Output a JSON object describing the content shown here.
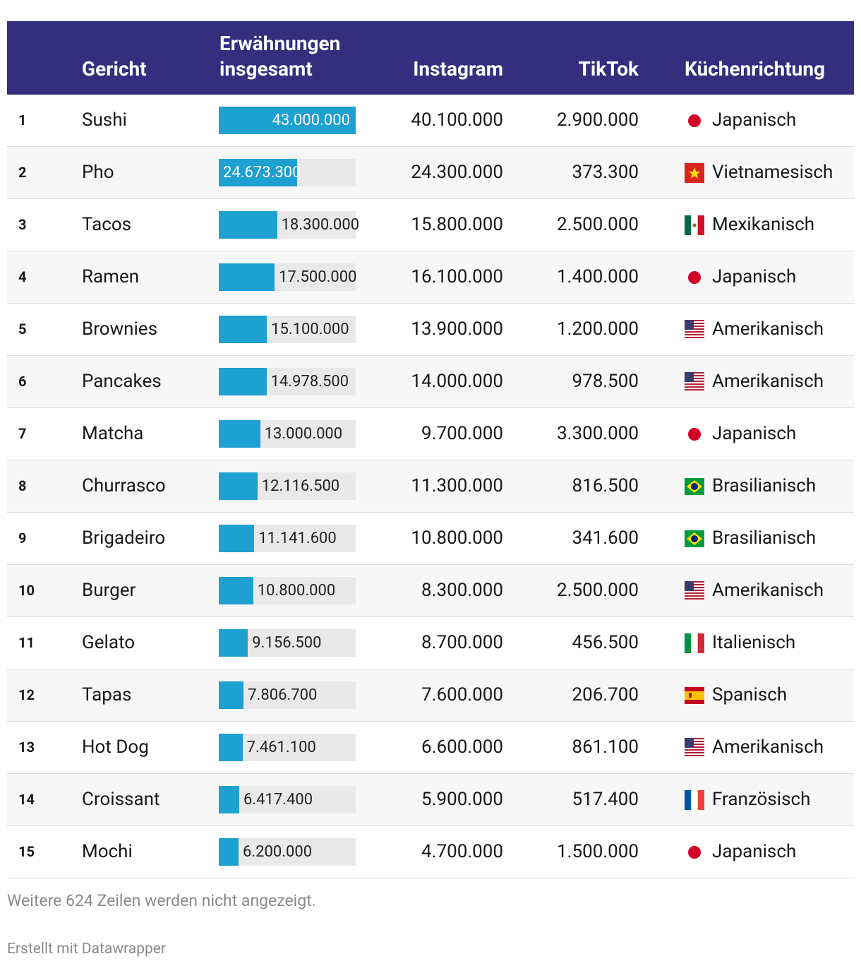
{
  "table": {
    "header": {
      "dish": "Gericht",
      "total": "Erwähnungen insgesamt",
      "instagram": "Instagram",
      "tiktok": "TikTok",
      "cuisine": "Küchenrichtung"
    },
    "rows": [
      {
        "rank": 1,
        "dish": "Sushi",
        "total": {
          "value": 43000000,
          "label": "43.000.000"
        },
        "instagram": "40.100.000",
        "tiktok": "2.900.000",
        "cuisine": "Japanisch"
      },
      {
        "rank": 2,
        "dish": "Pho",
        "total": {
          "value": 24673300,
          "label": "24.673.300"
        },
        "instagram": "24.300.000",
        "tiktok": "373.300",
        "cuisine": "Vietnamesisch"
      },
      {
        "rank": 3,
        "dish": "Tacos",
        "total": {
          "value": 18300000,
          "label": "18.300.000"
        },
        "instagram": "15.800.000",
        "tiktok": "2.500.000",
        "cuisine": "Mexikanisch"
      },
      {
        "rank": 4,
        "dish": "Ramen",
        "total": {
          "value": 17500000,
          "label": "17.500.000"
        },
        "instagram": "16.100.000",
        "tiktok": "1.400.000",
        "cuisine": "Japanisch"
      },
      {
        "rank": 5,
        "dish": "Brownies",
        "total": {
          "value": 15100000,
          "label": "15.100.000"
        },
        "instagram": "13.900.000",
        "tiktok": "1.200.000",
        "cuisine": "Amerikanisch"
      },
      {
        "rank": 6,
        "dish": "Pancakes",
        "total": {
          "value": 14978500,
          "label": "14.978.500"
        },
        "instagram": "14.000.000",
        "tiktok": "978.500",
        "cuisine": "Amerikanisch"
      },
      {
        "rank": 7,
        "dish": "Matcha",
        "total": {
          "value": 13000000,
          "label": "13.000.000"
        },
        "instagram": "9.700.000",
        "tiktok": "3.300.000",
        "cuisine": "Japanisch"
      },
      {
        "rank": 8,
        "dish": "Churrasco",
        "total": {
          "value": 12116500,
          "label": "12.116.500"
        },
        "instagram": "11.300.000",
        "tiktok": "816.500",
        "cuisine": "Brasilianisch"
      },
      {
        "rank": 9,
        "dish": "Brigadeiro",
        "total": {
          "value": 11141600,
          "label": "11.141.600"
        },
        "instagram": "10.800.000",
        "tiktok": "341.600",
        "cuisine": "Brasilianisch"
      },
      {
        "rank": 10,
        "dish": "Burger",
        "total": {
          "value": 10800000,
          "label": "10.800.000"
        },
        "instagram": "8.300.000",
        "tiktok": "2.500.000",
        "cuisine": "Amerikanisch"
      },
      {
        "rank": 11,
        "dish": "Gelato",
        "total": {
          "value": 9156500,
          "label": "9.156.500"
        },
        "instagram": "8.700.000",
        "tiktok": "456.500",
        "cuisine": "Italienisch"
      },
      {
        "rank": 12,
        "dish": "Tapas",
        "total": {
          "value": 7806700,
          "label": "7.806.700"
        },
        "instagram": "7.600.000",
        "tiktok": "206.700",
        "cuisine": "Spanisch"
      },
      {
        "rank": 13,
        "dish": "Hot Dog",
        "total": {
          "value": 7461100,
          "label": "7.461.100"
        },
        "instagram": "6.600.000",
        "tiktok": "861.100",
        "cuisine": "Amerikanisch"
      },
      {
        "rank": 14,
        "dish": "Croissant",
        "total": {
          "value": 6417400,
          "label": "6.417.400"
        },
        "instagram": "5.900.000",
        "tiktok": "517.400",
        "cuisine": "Französisch"
      },
      {
        "rank": 15,
        "dish": "Mochi",
        "total": {
          "value": 6200000,
          "label": "6.200.000"
        },
        "instagram": "4.700.000",
        "tiktok": "1.500.000",
        "cuisine": "Japanisch"
      }
    ],
    "note": "Weitere 624 Zeilen werden nicht angezeigt.",
    "credit": "Erstellt mit Datawrapper"
  }
}
